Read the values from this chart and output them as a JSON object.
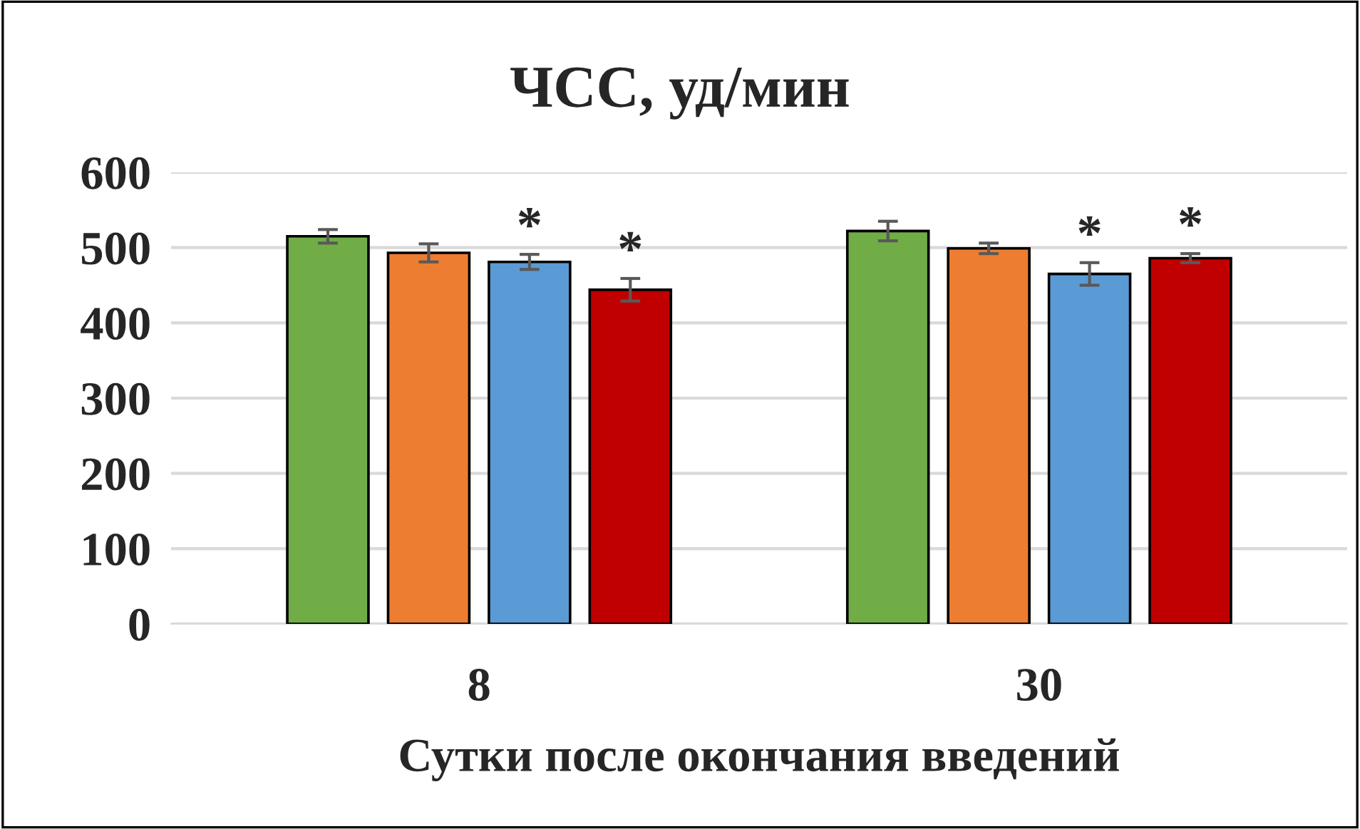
{
  "chart_data": {
    "type": "bar",
    "title": "ЧСС, уд/мин",
    "xlabel": "Сутки после окончания введений",
    "categories": [
      "8",
      "30"
    ],
    "series": [
      {
        "color": "#70ad47",
        "values": [
          515,
          522
        ],
        "errors": [
          9,
          13
        ]
      },
      {
        "color": "#ed7d31",
        "values": [
          493,
          499
        ],
        "errors": [
          12,
          7
        ]
      },
      {
        "color": "#5b9bd5",
        "values": [
          481,
          465
        ],
        "errors": [
          10,
          15
        ],
        "value_labels": [
          "*",
          "*"
        ]
      },
      {
        "color": "#c00000",
        "values": [
          444,
          486
        ],
        "errors": [
          15,
          6
        ],
        "value_labels": [
          "*",
          "*"
        ]
      }
    ],
    "ylim": [
      0,
      600
    ],
    "yticks": [
      0,
      100,
      200,
      300,
      400,
      500,
      600
    ],
    "grid": "y",
    "legend": false
  }
}
